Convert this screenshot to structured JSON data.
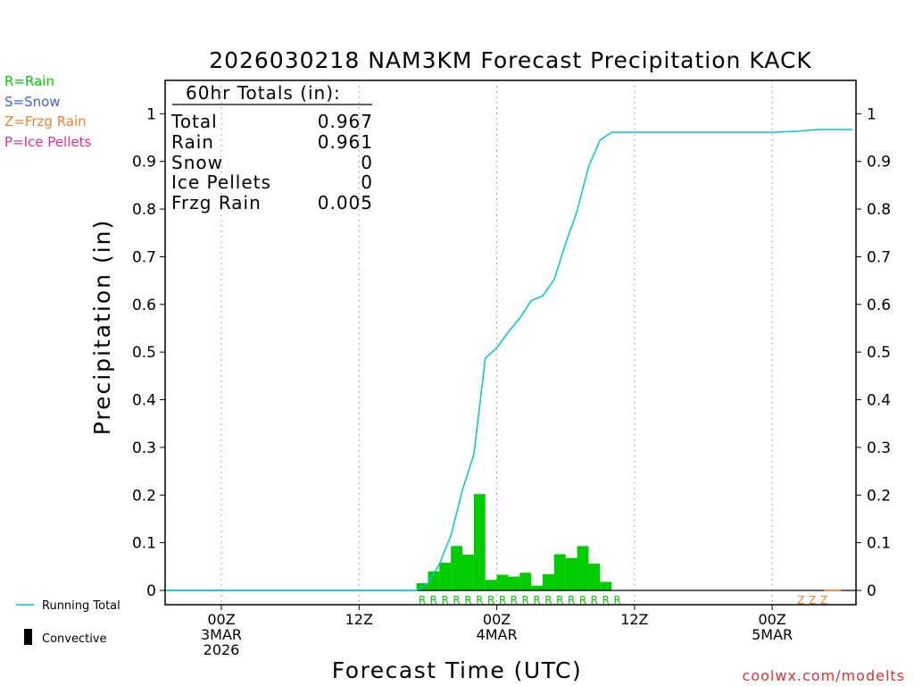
{
  "chart_data": {
    "type": "bar",
    "title": "2026030218 NAM3KM Forecast Precipitation KACK",
    "ylabel": "Precipitation (in)",
    "xlabel": "Forecast Time (UTC)",
    "ylim": [
      -0.03,
      1.07
    ],
    "xlim": [
      -4.9,
      55.3
    ],
    "x_units": "hours since 00Z 3MAR 2026",
    "yticks": [
      0,
      0.1,
      0.2,
      0.3,
      0.4,
      0.5,
      0.6,
      0.7,
      0.8,
      0.9,
      1
    ],
    "ytick_labels": [
      "0",
      "0.1",
      "0.2",
      "0.3",
      "0.4",
      "0.5",
      "0.6",
      "0.7",
      "0.8",
      "0.9",
      "1"
    ],
    "xticks": [
      {
        "hour": 0,
        "lines": [
          "00Z",
          "3MAR",
          "2026"
        ]
      },
      {
        "hour": 12,
        "lines": [
          "12Z"
        ]
      },
      {
        "hour": 24,
        "lines": [
          "00Z",
          "4MAR"
        ]
      },
      {
        "hour": 36,
        "lines": [
          "12Z"
        ]
      },
      {
        "hour": 48,
        "lines": [
          "00Z",
          "5MAR"
        ]
      }
    ],
    "gridlines": "vertical dotted at each x tick",
    "bars": {
      "name": "Rain (hourly)",
      "color": "#00cc00",
      "hours": [
        18,
        19,
        20,
        21,
        22,
        23,
        24,
        25,
        26,
        27,
        28,
        29,
        30,
        31,
        32,
        33,
        34,
        35
      ],
      "values": [
        0.015,
        0.04,
        0.058,
        0.093,
        0.075,
        0.202,
        0.022,
        0.033,
        0.029,
        0.037,
        0.01,
        0.034,
        0.076,
        0.068,
        0.093,
        0.056,
        0.018,
        0.0
      ]
    },
    "running_total": {
      "name": "Running Total",
      "color": "#00c8c8",
      "hours": [
        -5,
        17,
        18,
        19,
        20,
        21,
        22,
        23,
        24,
        25,
        26,
        27,
        28,
        29,
        30,
        31,
        32,
        33,
        34,
        35,
        36,
        48,
        50,
        52,
        55
      ],
      "values": [
        0,
        0,
        0.015,
        0.055,
        0.115,
        0.21,
        0.285,
        0.487,
        0.509,
        0.542,
        0.571,
        0.608,
        0.618,
        0.652,
        0.728,
        0.796,
        0.889,
        0.945,
        0.961,
        0.961,
        0.961,
        0.961,
        0.963,
        0.967,
        0.967
      ]
    },
    "ptype_markers": [
      {
        "letter": "R",
        "color": "#00cc00",
        "hours": [
          18,
          19,
          20,
          21,
          22,
          23,
          24,
          25,
          26,
          27,
          28,
          29,
          30,
          31,
          32,
          33,
          34,
          35
        ]
      },
      {
        "letter": "Z",
        "color": "#f08030",
        "hours": [
          51,
          52,
          53
        ]
      }
    ],
    "zfrz_line": {
      "color": "#f08030",
      "hours": [
        52.5,
        54
      ]
    },
    "totals_box": {
      "heading": "60hr Totals (in):",
      "rows": [
        {
          "label": "Total",
          "value": "0.967"
        },
        {
          "label": "Rain",
          "value": "0.961"
        },
        {
          "label": "Snow",
          "value": "0"
        },
        {
          "label": "Ice Pellets",
          "value": "0"
        },
        {
          "label": "Frzg Rain",
          "value": "0.005"
        }
      ]
    },
    "ptype_legend": [
      {
        "text": "R=Rain",
        "color": "#00cc00"
      },
      {
        "text": "S=Snow",
        "color": "#4060e0"
      },
      {
        "text": "Z=Frzg Rain",
        "color": "#f08030"
      },
      {
        "text": "P=Ice Pellets",
        "color": "#e0309a"
      }
    ],
    "series_legend": [
      {
        "text": "Running Total",
        "color": "#00c8c8",
        "symbol": "line"
      },
      {
        "text": "Convective",
        "color": "#000000",
        "symbol": "bar"
      }
    ],
    "credit": "coolwx.com/modelts"
  }
}
